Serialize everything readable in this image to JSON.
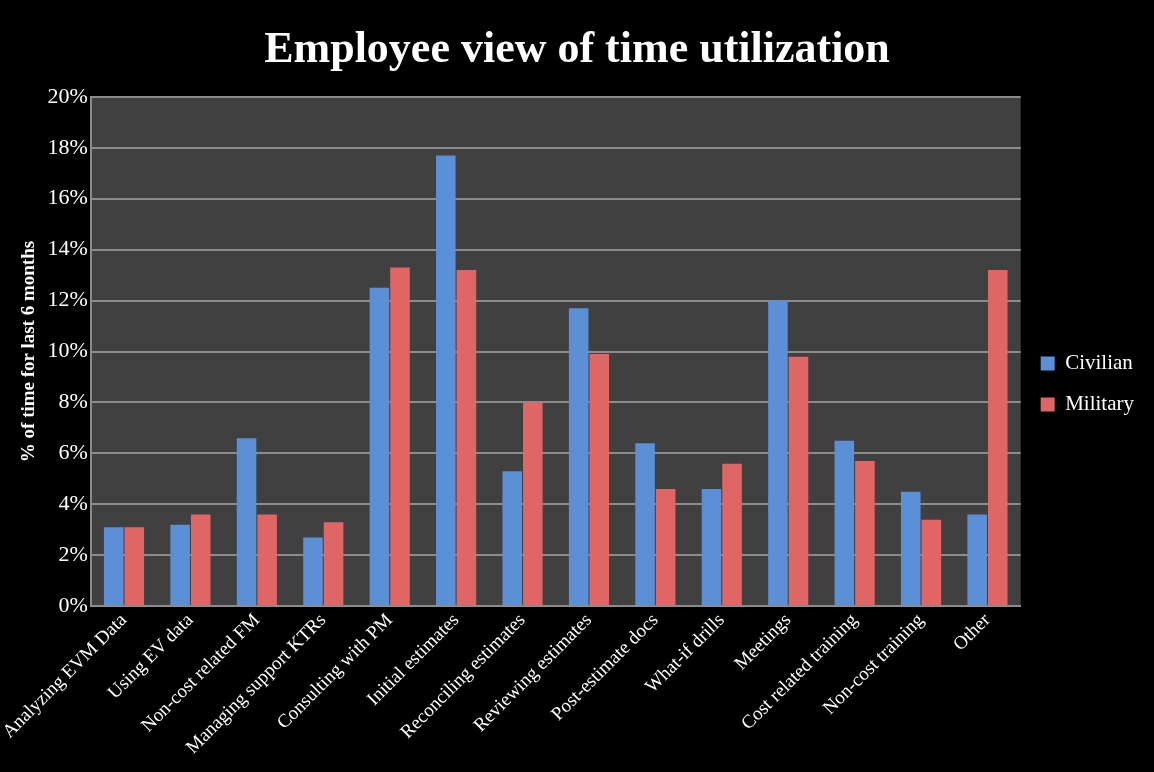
{
  "chart_data": {
    "type": "bar",
    "title": "Employee view of time utilization",
    "ylabel": "% of time for last 6 months",
    "categories": [
      "Analyzing EVM Data",
      "Using EV data",
      "Non-cost related FM",
      "Managing support KTRs",
      "Consulting with PM",
      "Initial estimates",
      "Reconciling estimates",
      "Reviewing estimates",
      "Post-estimate docs",
      "What-if drills",
      "Meetings",
      "Cost related training",
      "Non-cost training",
      "Other"
    ],
    "series": [
      {
        "name": "Civilian",
        "color": "#5b8fd6",
        "values": [
          3.1,
          3.2,
          6.6,
          2.7,
          12.5,
          17.7,
          5.3,
          11.7,
          6.4,
          4.6,
          12.0,
          6.5,
          4.5,
          3.6
        ]
      },
      {
        "name": "Military",
        "color": "#e06666",
        "values": [
          3.1,
          3.6,
          3.6,
          3.3,
          13.3,
          13.2,
          8.0,
          9.9,
          4.6,
          5.6,
          9.8,
          5.7,
          3.4,
          13.2
        ]
      }
    ],
    "ylim": [
      0,
      20
    ],
    "yticks": [
      {
        "value": 0,
        "label": "0%"
      },
      {
        "value": 2,
        "label": "2%"
      },
      {
        "value": 4,
        "label": "4%"
      },
      {
        "value": 6,
        "label": "6%"
      },
      {
        "value": 8,
        "label": "8%"
      },
      {
        "value": 10,
        "label": "10%"
      },
      {
        "value": 12,
        "label": "12%"
      },
      {
        "value": 14,
        "label": "14%"
      },
      {
        "value": 16,
        "label": "16%"
      },
      {
        "value": 18,
        "label": "18%"
      },
      {
        "value": 20,
        "label": "20%"
      }
    ],
    "grid": "y",
    "legend": "right"
  }
}
